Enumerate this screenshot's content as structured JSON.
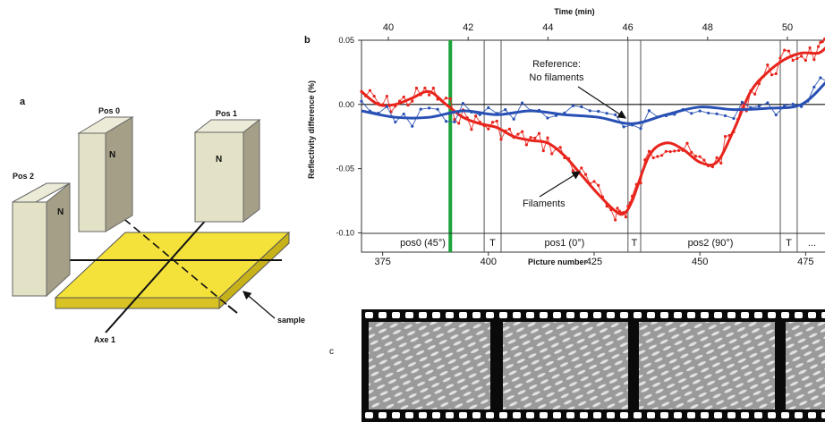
{
  "panel_a": {
    "label": "a",
    "magnets": [
      {
        "name": "Pos 0",
        "pole": "N"
      },
      {
        "name": "Pos 1",
        "pole": "N"
      },
      {
        "name": "Pos 2",
        "pole": "N"
      }
    ],
    "axis_label": "Axe 1",
    "sample_label": "sample"
  },
  "panel_b": {
    "label": "b",
    "annotations": {
      "reference_line1": "Reference:",
      "reference_line2": "No filaments",
      "filaments": "Filaments"
    },
    "phases": [
      "pos0 (45°)",
      "T",
      "pos1 (0°)",
      "T",
      "pos2 (90°)",
      "T",
      "..."
    ]
  },
  "panel_c": {
    "label": "c"
  },
  "chart_data": {
    "type": "line",
    "title": "",
    "xlabel": "Picture number",
    "ylabel": "Reflectivity difference (%)",
    "x2label": "Time (min)",
    "xlim": [
      370,
      480
    ],
    "ylim": [
      -0.115,
      0.05
    ],
    "x_ticks": [
      375,
      400,
      425,
      450,
      475
    ],
    "y_ticks": [
      "0.05",
      "0.00",
      "-0.05",
      "-0.10"
    ],
    "x2_ticks": [
      40,
      42,
      44,
      46,
      48,
      50
    ],
    "colors": {
      "red": "#e8241c",
      "blue": "#2850b4",
      "marker": "#1aa33a"
    },
    "marker_x": 391,
    "phase_boundaries": [
      399,
      403,
      433,
      436,
      469,
      473
    ],
    "series": [
      {
        "color": "red",
        "x": [
          370,
          374,
          378,
          382,
          386,
          390,
          394,
          398,
          402,
          406,
          410,
          414,
          418,
          422,
          426,
          430,
          432,
          434,
          438,
          442,
          446,
          450,
          454,
          458,
          462,
          466,
          470,
          474,
          478,
          480
        ],
        "y": [
          0.01,
          0.0,
          0.0,
          0.005,
          0.01,
          0.0,
          -0.01,
          -0.015,
          -0.018,
          -0.025,
          -0.028,
          -0.03,
          -0.04,
          -0.055,
          -0.07,
          -0.083,
          -0.085,
          -0.075,
          -0.04,
          -0.03,
          -0.035,
          -0.045,
          -0.045,
          -0.02,
          0.01,
          0.025,
          0.035,
          0.04,
          0.04,
          0.045
        ]
      },
      {
        "color": "blue",
        "x": [
          370,
          378,
          386,
          394,
          402,
          410,
          418,
          426,
          434,
          442,
          450,
          458,
          466,
          474,
          480
        ],
        "y": [
          -0.005,
          -0.01,
          -0.01,
          -0.005,
          -0.008,
          -0.005,
          -0.008,
          -0.01,
          -0.015,
          -0.008,
          -0.002,
          -0.004,
          -0.003,
          0.0,
          0.018
        ]
      }
    ]
  }
}
